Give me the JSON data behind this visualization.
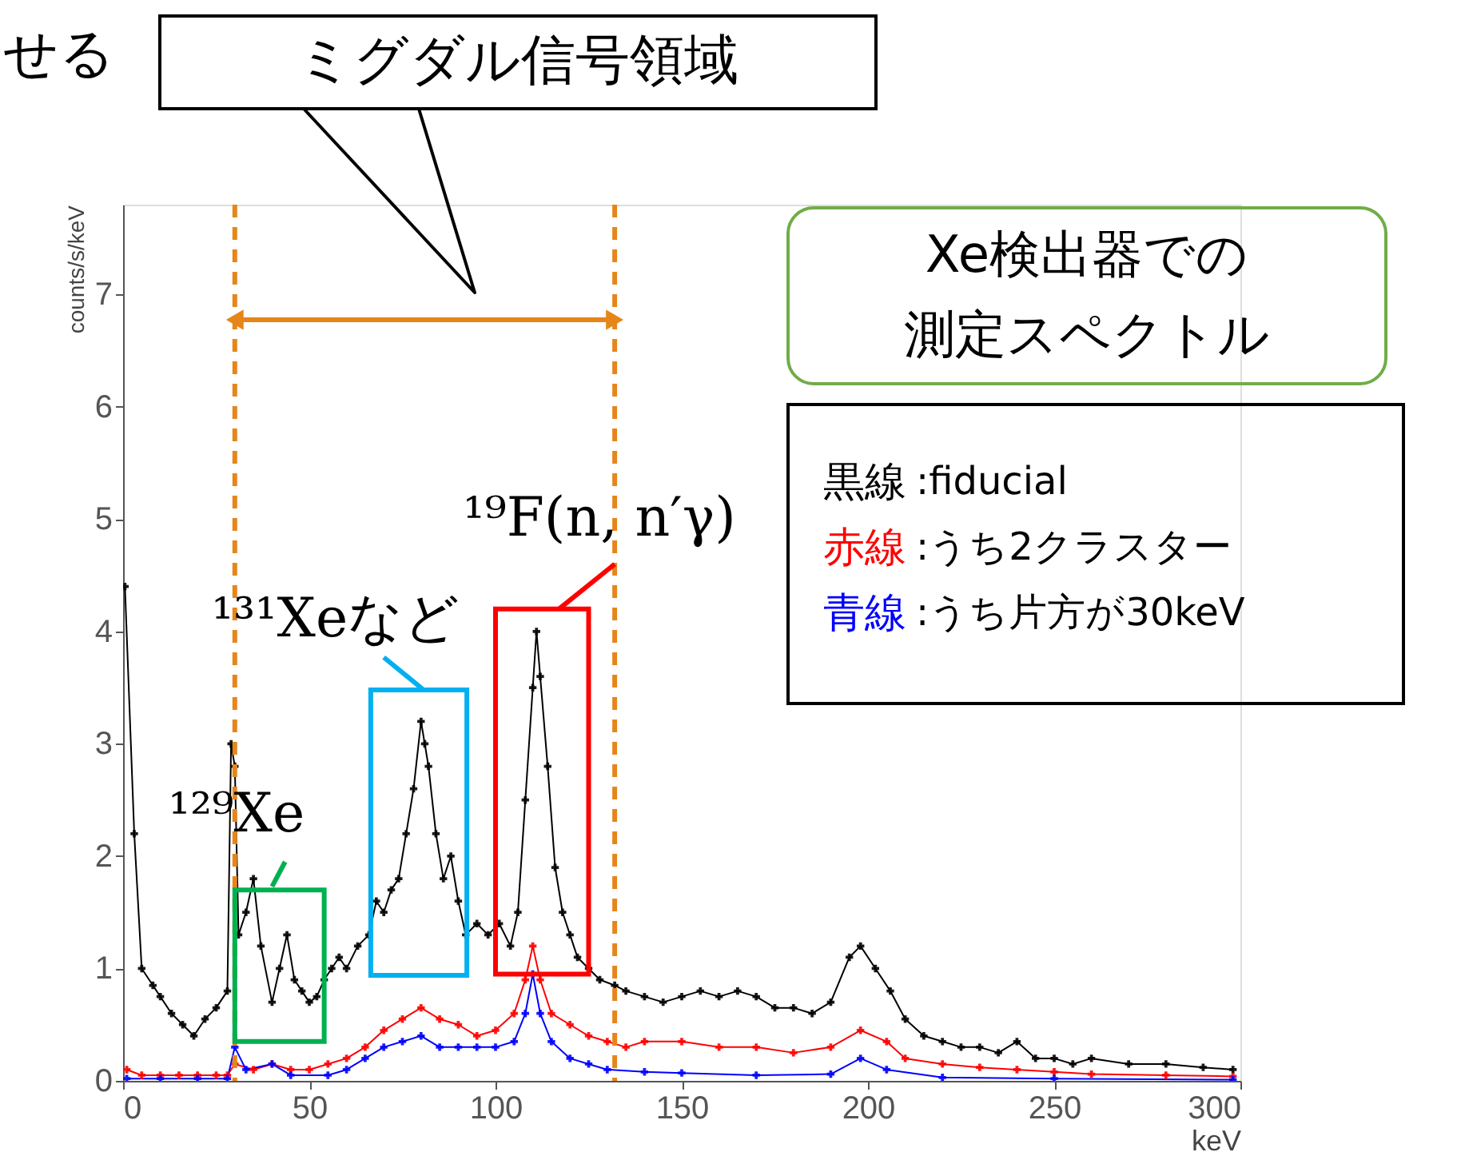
{
  "chart_data": {
    "type": "line",
    "title": "Xe検出器での測定スペクトル",
    "xlabel": "keV",
    "ylabel": "counts/s/keV",
    "xlim": [
      0,
      300
    ],
    "xticks": [
      0,
      50,
      100,
      150,
      200,
      250,
      300
    ],
    "ylim": [
      0,
      7.8
    ],
    "yticks": [
      0,
      1,
      2,
      3,
      4,
      5,
      6,
      7
    ],
    "grid": false,
    "legend": "top right",
    "marker": "cross",
    "line_style": "solid",
    "series": [
      {
        "name": "黒線:fiducial",
        "color": "#000000",
        "x": [
          0.5,
          3,
          5,
          8,
          10,
          13,
          16,
          19,
          22,
          25,
          28,
          29,
          30,
          31,
          33,
          35,
          37,
          40,
          42,
          44,
          46,
          48,
          50,
          52,
          54,
          56,
          58,
          60,
          63,
          66,
          68,
          70,
          72,
          74,
          76,
          78,
          80,
          81,
          82,
          84,
          86,
          88,
          90,
          92,
          95,
          98,
          101,
          104,
          106,
          108,
          110,
          111,
          112,
          114,
          116,
          118,
          120,
          122,
          125,
          128,
          132,
          135,
          140,
          145,
          150,
          155,
          160,
          165,
          170,
          175,
          180,
          185,
          190,
          195,
          198,
          202,
          206,
          210,
          215,
          220,
          225,
          230,
          235,
          240,
          245,
          250,
          255,
          260,
          270,
          280,
          290,
          298
        ],
        "values": [
          4.4,
          2.2,
          1.0,
          0.85,
          0.75,
          0.6,
          0.5,
          0.4,
          0.55,
          0.65,
          0.8,
          3.0,
          2.8,
          1.3,
          1.5,
          1.8,
          1.2,
          0.7,
          1.0,
          1.3,
          0.9,
          0.8,
          0.7,
          0.75,
          0.9,
          1.0,
          1.1,
          1.0,
          1.2,
          1.3,
          1.6,
          1.5,
          1.7,
          1.8,
          2.2,
          2.6,
          3.2,
          3.0,
          2.8,
          2.2,
          1.8,
          2.0,
          1.6,
          1.3,
          1.4,
          1.3,
          1.4,
          1.2,
          1.5,
          2.5,
          3.5,
          4.0,
          3.6,
          2.8,
          1.9,
          1.5,
          1.3,
          1.1,
          1.0,
          0.9,
          0.85,
          0.8,
          0.75,
          0.7,
          0.75,
          0.8,
          0.75,
          0.8,
          0.75,
          0.65,
          0.65,
          0.6,
          0.7,
          1.1,
          1.2,
          1.0,
          0.8,
          0.55,
          0.4,
          0.35,
          0.3,
          0.3,
          0.25,
          0.35,
          0.2,
          0.2,
          0.15,
          0.2,
          0.15,
          0.15,
          0.12,
          0.1
        ]
      },
      {
        "name": "赤線:うち2クラスター",
        "color": "#ff0000",
        "x": [
          1,
          5,
          10,
          15,
          20,
          25,
          28,
          30,
          35,
          40,
          45,
          50,
          55,
          60,
          65,
          70,
          75,
          80,
          85,
          90,
          95,
          100,
          105,
          108,
          110,
          112,
          115,
          120,
          125,
          130,
          135,
          140,
          150,
          160,
          170,
          180,
          190,
          198,
          205,
          210,
          220,
          230,
          240,
          250,
          260,
          280,
          298
        ],
        "values": [
          0.1,
          0.05,
          0.05,
          0.05,
          0.05,
          0.05,
          0.05,
          0.15,
          0.1,
          0.15,
          0.1,
          0.1,
          0.15,
          0.2,
          0.3,
          0.45,
          0.55,
          0.65,
          0.55,
          0.5,
          0.4,
          0.45,
          0.6,
          0.9,
          1.2,
          0.9,
          0.6,
          0.5,
          0.4,
          0.35,
          0.3,
          0.35,
          0.35,
          0.3,
          0.3,
          0.25,
          0.3,
          0.45,
          0.35,
          0.2,
          0.15,
          0.12,
          0.1,
          0.08,
          0.06,
          0.05,
          0.04
        ]
      },
      {
        "name": "青線:うち片方が30keV",
        "color": "#0000ff",
        "x": [
          1,
          10,
          20,
          28,
          30,
          33,
          40,
          45,
          55,
          60,
          65,
          70,
          75,
          80,
          85,
          90,
          95,
          100,
          105,
          108,
          110,
          112,
          115,
          120,
          125,
          130,
          140,
          150,
          170,
          190,
          198,
          205,
          220,
          250,
          298
        ],
        "values": [
          0.02,
          0.02,
          0.02,
          0.02,
          0.3,
          0.1,
          0.15,
          0.05,
          0.05,
          0.1,
          0.2,
          0.3,
          0.35,
          0.4,
          0.3,
          0.3,
          0.3,
          0.3,
          0.35,
          0.6,
          0.95,
          0.6,
          0.35,
          0.2,
          0.15,
          0.1,
          0.08,
          0.07,
          0.05,
          0.06,
          0.2,
          0.1,
          0.03,
          0.02,
          0.01
        ]
      }
    ],
    "ref_lines": [
      {
        "axis": "x",
        "value": 30,
        "color": "#e6861a",
        "line_style": "dashed"
      },
      {
        "axis": "x",
        "value": 132,
        "color": "#e6861a",
        "line_style": "dashed"
      }
    ],
    "annotations": [
      "せる",
      "ミグダル信号領域",
      "¹²⁹Xe",
      "¹³¹Xeなど",
      "¹⁹F(n, n′γ)"
    ]
  }
}
